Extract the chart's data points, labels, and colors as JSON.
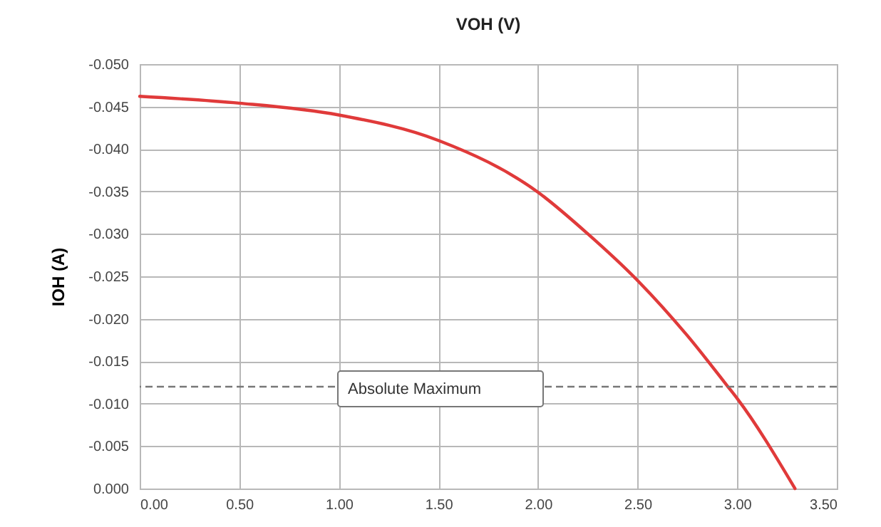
{
  "chart_data": {
    "type": "line",
    "title": "VOH (V)",
    "ylabel": "IOH (A)",
    "x": [
      0,
      0.5,
      1,
      1.5,
      2,
      2.25,
      2.5,
      2.75,
      2.95,
      3,
      3.29
    ],
    "series": [
      {
        "color": "#e03a3a",
        "values": [
          -0.0462,
          -0.0454,
          -0.044,
          -0.041,
          -0.0349,
          -0.03,
          -0.0245,
          -0.018,
          -0.0121,
          -0.0106,
          0
        ]
      }
    ],
    "xlim": [
      0,
      3.5
    ],
    "xticks": [
      {
        "value": 0,
        "label": "0.00"
      },
      {
        "value": 0.5,
        "label": "0.50"
      },
      {
        "value": 1,
        "label": "1.00"
      },
      {
        "value": 1.5,
        "label": "1.50"
      },
      {
        "value": 2,
        "label": "2.00"
      },
      {
        "value": 2.5,
        "label": "2.50"
      },
      {
        "value": 3,
        "label": "3.00"
      },
      {
        "value": 3.5,
        "label": "3.50"
      }
    ],
    "ylim": [
      0,
      -0.05
    ],
    "yticks": [
      {
        "value": -0.05,
        "label": "-0.050"
      },
      {
        "value": -0.045,
        "label": "-0.045"
      },
      {
        "value": -0.04,
        "label": "-0.040"
      },
      {
        "value": -0.035,
        "label": "-0.035"
      },
      {
        "value": -0.03,
        "label": "-0.030"
      },
      {
        "value": -0.025,
        "label": "-0.025"
      },
      {
        "value": -0.02,
        "label": "-0.020"
      },
      {
        "value": -0.015,
        "label": "-0.015"
      },
      {
        "value": -0.01,
        "label": "-0.010"
      },
      {
        "value": -0.005,
        "label": "-0.005"
      },
      {
        "value": 0,
        "label": "0.000"
      }
    ],
    "ref_lines": [
      {
        "axis": "y",
        "value": -0.012,
        "label": "Absolute Maximum",
        "color": "#777777",
        "line_style": "dashed"
      }
    ],
    "grid": true,
    "marker": "none",
    "line_style": "solid"
  }
}
